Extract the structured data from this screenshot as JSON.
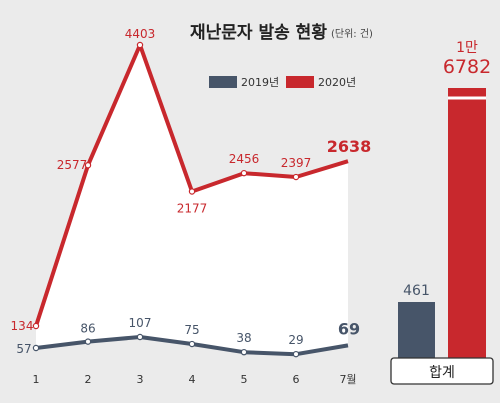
{
  "colors": {
    "background": "#ebebeb",
    "series_2019": "#475569",
    "series_2020": "#c8282d",
    "area_fill": "#ffffff"
  },
  "chart_data": [
    {
      "type": "line",
      "title": "재난문자 발송 현황",
      "subtitle": "(단위: 건)",
      "categories": [
        "1",
        "2",
        "3",
        "4",
        "5",
        "6",
        "7월"
      ],
      "series": [
        {
          "name": "2019년",
          "values": [
            57,
            86,
            107,
            75,
            38,
            29,
            69
          ]
        },
        {
          "name": "2020년",
          "values": [
            134,
            2577,
            4403,
            2177,
            2456,
            2397,
            2638
          ]
        }
      ],
      "value_labels": {
        "2019년": [
          "57",
          "86",
          "107",
          "75",
          "38",
          "29",
          "69"
        ],
        "2020년": [
          "134",
          "2577",
          "4403",
          "2177",
          "2456",
          "2397",
          "2638"
        ]
      },
      "legend": "top-center",
      "grid": false,
      "area_under_top_series": true
    },
    {
      "type": "bar",
      "category_label": "합계",
      "series": [
        {
          "name": "2019년",
          "value": 461,
          "label": "461"
        },
        {
          "name": "2020년",
          "value": 16782,
          "label_line1": "1만",
          "label_line2": "6782"
        }
      ],
      "legend": "none"
    }
  ]
}
